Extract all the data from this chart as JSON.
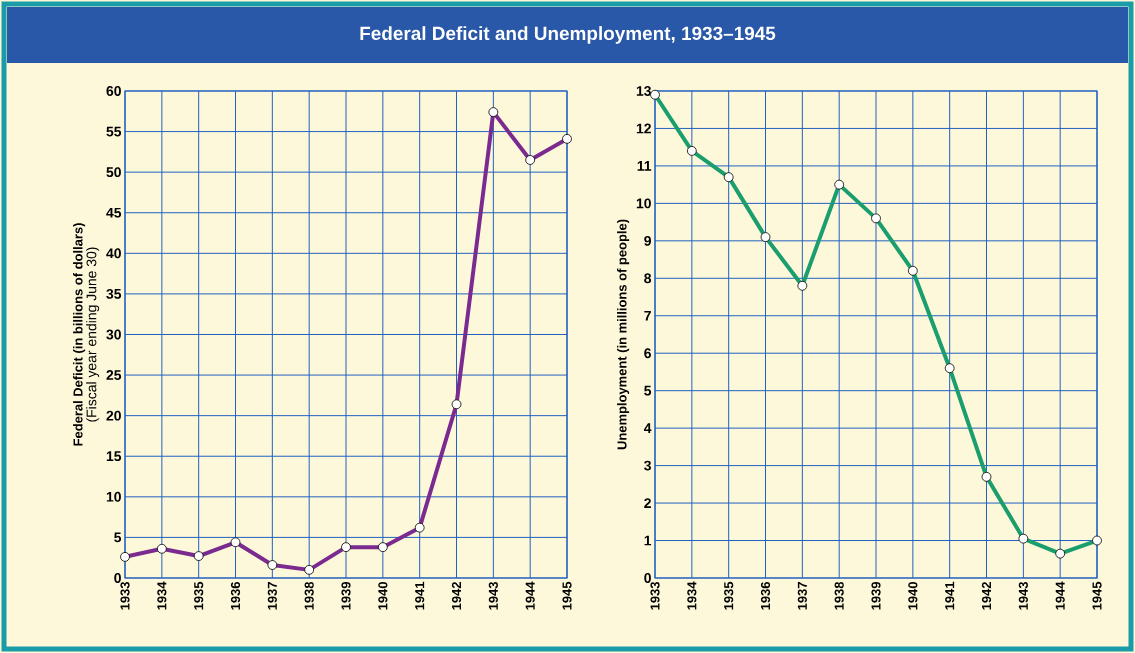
{
  "chart_data": [
    {
      "type": "line",
      "title": "Federal Deficit and Unemployment, 1933–1945",
      "ylabel": "Federal Deficit (in billions of dollars)",
      "annotations": [
        "(Fiscal year ending June 30)"
      ],
      "categories": [
        "1933",
        "1934",
        "1935",
        "1936",
        "1937",
        "1938",
        "1939",
        "1940",
        "1941",
        "1942",
        "1943",
        "1944",
        "1945"
      ],
      "values": [
        2.6,
        3.6,
        2.7,
        4.4,
        1.6,
        1.0,
        3.8,
        3.8,
        6.2,
        21.4,
        57.4,
        51.5,
        54.1
      ],
      "color": "#7b2a90",
      "ylim": [
        0,
        60
      ],
      "yticks": [
        0,
        5,
        10,
        15,
        20,
        25,
        30,
        35,
        40,
        45,
        50,
        55,
        60
      ],
      "grid": true,
      "marker": "circle"
    },
    {
      "type": "line",
      "ylabel": "Unemployment (in millions of people)",
      "categories": [
        "1933",
        "1934",
        "1935",
        "1936",
        "1937",
        "1938",
        "1939",
        "1940",
        "1941",
        "1942",
        "1943",
        "1944",
        "1945"
      ],
      "values": [
        12.9,
        11.4,
        10.7,
        9.1,
        7.8,
        10.5,
        9.6,
        8.2,
        5.6,
        2.7,
        1.05,
        0.65,
        1.0
      ],
      "color": "#1a9e6e",
      "ylim": [
        0,
        13
      ],
      "yticks": [
        0,
        1,
        2,
        3,
        4,
        5,
        6,
        7,
        8,
        9,
        10,
        11,
        12,
        13
      ],
      "grid": true,
      "marker": "circle"
    }
  ]
}
